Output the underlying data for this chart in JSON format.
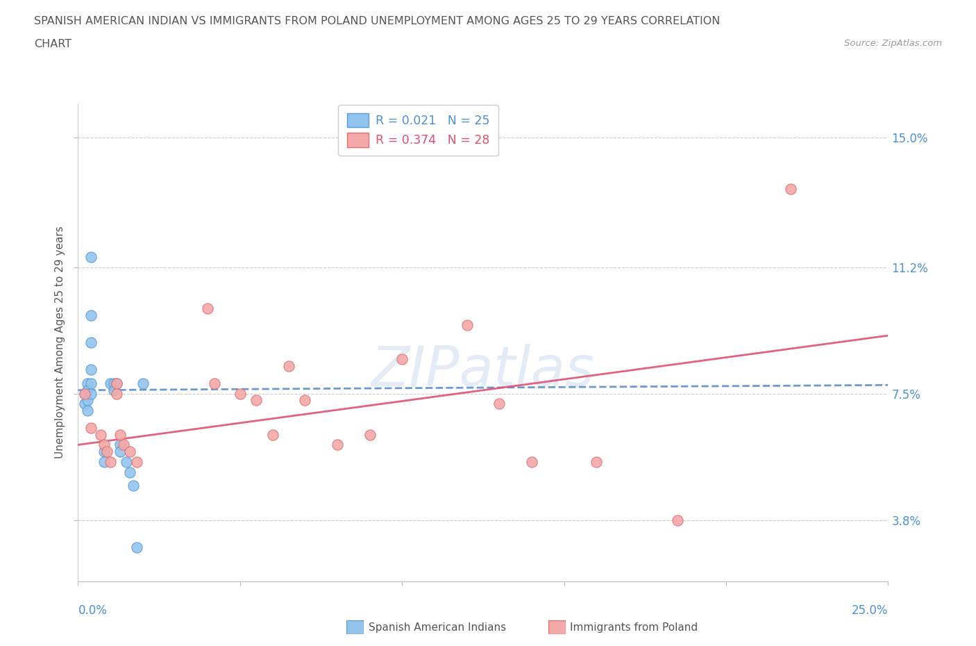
{
  "title_line1": "SPANISH AMERICAN INDIAN VS IMMIGRANTS FROM POLAND UNEMPLOYMENT AMONG AGES 25 TO 29 YEARS CORRELATION",
  "title_line2": "CHART",
  "source_text": "Source: ZipAtlas.com",
  "ylabel": "Unemployment Among Ages 25 to 29 years",
  "xlim": [
    0.0,
    0.25
  ],
  "ylim": [
    0.02,
    0.16
  ],
  "ytick_labels_right": [
    "15.0%",
    "11.2%",
    "7.5%",
    "3.8%"
  ],
  "ytick_vals_right": [
    0.15,
    0.112,
    0.075,
    0.038
  ],
  "color_blue": "#92C5ED",
  "color_pink": "#F4A8A8",
  "color_blue_edge": "#5B9BD5",
  "color_pink_edge": "#E07070",
  "color_line_blue": "#5B8ED0",
  "color_line_pink": "#E05070",
  "watermark_color": "#C8D8F0",
  "background_color": "#FFFFFF",
  "blue_scatter_x": [
    0.002,
    0.002,
    0.003,
    0.003,
    0.003,
    0.003,
    0.004,
    0.004,
    0.004,
    0.004,
    0.004,
    0.004,
    0.008,
    0.008,
    0.01,
    0.011,
    0.011,
    0.012,
    0.013,
    0.013,
    0.015,
    0.016,
    0.017,
    0.018,
    0.02
  ],
  "blue_scatter_y": [
    0.075,
    0.072,
    0.078,
    0.076,
    0.073,
    0.07,
    0.115,
    0.098,
    0.09,
    0.082,
    0.078,
    0.075,
    0.058,
    0.055,
    0.078,
    0.078,
    0.076,
    0.078,
    0.06,
    0.058,
    0.055,
    0.052,
    0.048,
    0.03,
    0.078
  ],
  "pink_scatter_x": [
    0.002,
    0.004,
    0.007,
    0.008,
    0.009,
    0.01,
    0.012,
    0.012,
    0.013,
    0.014,
    0.016,
    0.018,
    0.04,
    0.042,
    0.05,
    0.055,
    0.06,
    0.065,
    0.07,
    0.08,
    0.09,
    0.1,
    0.12,
    0.13,
    0.14,
    0.16,
    0.185,
    0.22
  ],
  "pink_scatter_y": [
    0.075,
    0.065,
    0.063,
    0.06,
    0.058,
    0.055,
    0.078,
    0.075,
    0.063,
    0.06,
    0.058,
    0.055,
    0.1,
    0.078,
    0.075,
    0.073,
    0.063,
    0.083,
    0.073,
    0.06,
    0.063,
    0.085,
    0.095,
    0.072,
    0.055,
    0.055,
    0.038,
    0.135
  ]
}
